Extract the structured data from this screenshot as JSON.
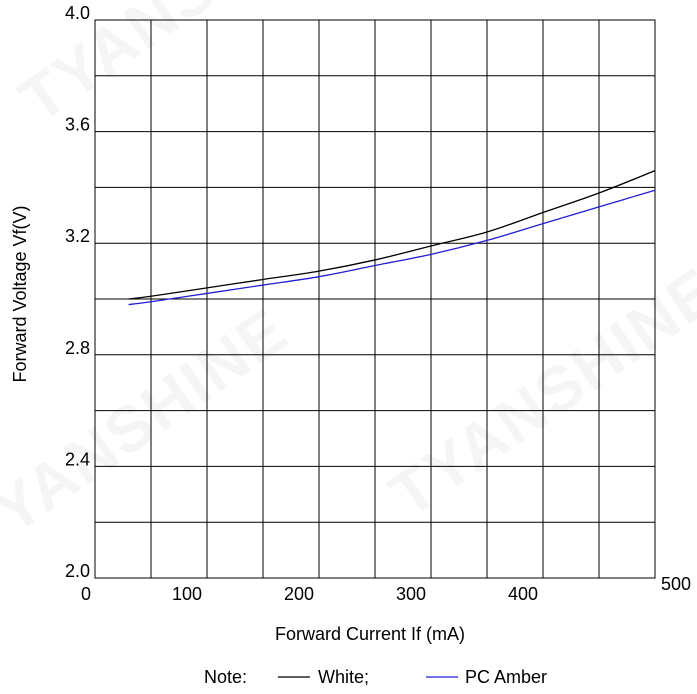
{
  "chart_data": {
    "type": "line",
    "title": "",
    "xlabel": "Forward Current  If (mA)",
    "ylabel": "Forward Voltage Vf(V)",
    "xlim": [
      0,
      500
    ],
    "ylim": [
      2.0,
      4.0
    ],
    "x_ticks": [
      0,
      100,
      200,
      300,
      400,
      500
    ],
    "y_ticks": [
      2.0,
      2.4,
      2.8,
      3.2,
      3.6,
      4.0
    ],
    "grid": true,
    "legend_position": "bottom-center",
    "legend_prefix": "Note:",
    "series": [
      {
        "name": "White;",
        "color": "#000000",
        "x": [
          30,
          50,
          100,
          150,
          200,
          250,
          300,
          350,
          400,
          450,
          500
        ],
        "y": [
          3.0,
          3.01,
          3.04,
          3.07,
          3.1,
          3.14,
          3.19,
          3.24,
          3.31,
          3.38,
          3.46
        ]
      },
      {
        "name": "PC Amber",
        "color": "#1f1fd6",
        "x": [
          30,
          50,
          100,
          150,
          200,
          250,
          300,
          350,
          400,
          450,
          500
        ],
        "y": [
          2.98,
          2.99,
          3.02,
          3.05,
          3.08,
          3.12,
          3.16,
          3.21,
          3.27,
          3.33,
          3.39
        ]
      }
    ]
  },
  "watermark": {
    "brand": "TYANSHINE"
  }
}
